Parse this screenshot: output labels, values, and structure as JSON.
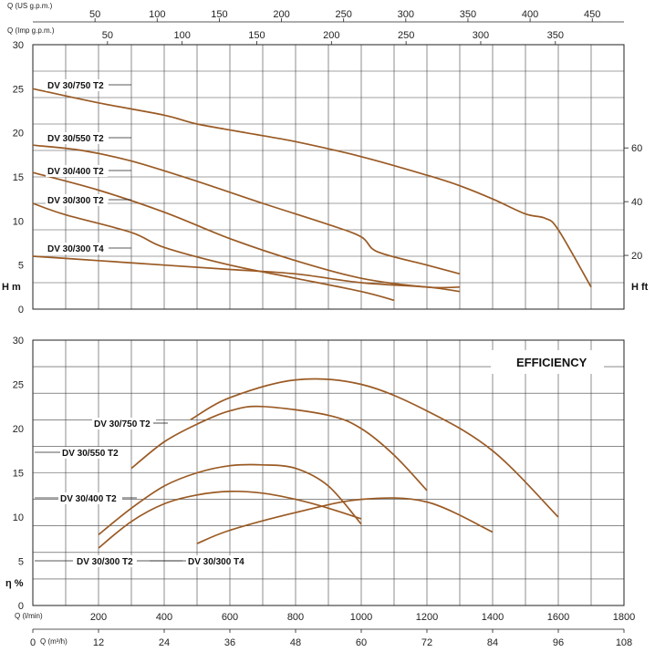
{
  "chart_data": [
    {
      "id": "head",
      "type": "line",
      "x_unit": "l/min",
      "xlim": [
        0,
        1800
      ],
      "ylim": [
        0,
        30
      ],
      "y_ticks": [
        0,
        5,
        10,
        15,
        20,
        25,
        30
      ],
      "ylabel": "H m",
      "right_axis": {
        "label": "H ft",
        "ticks": [
          20,
          40,
          60
        ]
      },
      "top_axes": [
        {
          "label": "Q (US g.p.m.)",
          "ticks": [
            50,
            100,
            150,
            200,
            250,
            300,
            350,
            400,
            450
          ]
        },
        {
          "label": "Q (Imp g.p.m.)",
          "ticks": [
            50,
            100,
            150,
            200,
            250,
            300,
            350
          ]
        }
      ],
      "grid": true,
      "series": [
        {
          "name": "DV 30/750 T2",
          "points": [
            [
              0,
              25
            ],
            [
              200,
              23.4
            ],
            [
              400,
              22
            ],
            [
              500,
              21
            ],
            [
              650,
              20
            ],
            [
              800,
              19
            ],
            [
              1000,
              17.3
            ],
            [
              1200,
              15.2
            ],
            [
              1300,
              14
            ],
            [
              1400,
              12.5
            ],
            [
              1500,
              10.8
            ],
            [
              1560,
              10.3
            ],
            [
              1600,
              9
            ],
            [
              1700,
              2.5
            ]
          ]
        },
        {
          "name": "DV 30/550 T2",
          "points": [
            [
              0,
              18.6
            ],
            [
              150,
              18
            ],
            [
              300,
              16.8
            ],
            [
              500,
              14.5
            ],
            [
              700,
              12
            ],
            [
              900,
              9.6
            ],
            [
              1000,
              8.2
            ],
            [
              1050,
              6.5
            ],
            [
              1200,
              5
            ],
            [
              1300,
              4
            ]
          ]
        },
        {
          "name": "DV 30/400 T2",
          "points": [
            [
              0,
              15.5
            ],
            [
              200,
              13.5
            ],
            [
              400,
              11
            ],
            [
              600,
              8
            ],
            [
              800,
              5.5
            ],
            [
              1000,
              3.5
            ],
            [
              1200,
              2.5
            ],
            [
              1300,
              2.5
            ]
          ]
        },
        {
          "name": "DV 30/300 T2",
          "points": [
            [
              0,
              12
            ],
            [
              100,
              10.7
            ],
            [
              300,
              8.7
            ],
            [
              400,
              7
            ],
            [
              600,
              5
            ],
            [
              800,
              3.5
            ],
            [
              1000,
              2
            ],
            [
              1100,
              1
            ]
          ]
        },
        {
          "name": "DV 30/300 T4",
          "points": [
            [
              0,
              6
            ],
            [
              200,
              5.5
            ],
            [
              400,
              5
            ],
            [
              600,
              4.5
            ],
            [
              800,
              4
            ],
            [
              1000,
              3
            ],
            [
              1200,
              2.5
            ],
            [
              1300,
              2
            ]
          ]
        }
      ]
    },
    {
      "id": "efficiency",
      "type": "line",
      "title": "EFFICIENCY",
      "xlabel_lpm": "Q (l/min)",
      "xlabel_m3h": "Q (m³/h)",
      "ylabel": "η %",
      "xlim": [
        0,
        1800
      ],
      "ylim": [
        0,
        30
      ],
      "y_ticks": [
        0,
        5,
        10,
        15,
        20,
        25,
        30
      ],
      "x_ticks_lpm": [
        200,
        400,
        600,
        800,
        1000,
        1200,
        1400,
        1600,
        1800
      ],
      "x_ticks_m3h": [
        0,
        12,
        24,
        36,
        48,
        60,
        72,
        84,
        96,
        108
      ],
      "grid": true,
      "series": [
        {
          "name": "DV 30/750 T2",
          "points": [
            [
              480,
              21
            ],
            [
              600,
              23.5
            ],
            [
              800,
              25.5
            ],
            [
              1000,
              25
            ],
            [
              1200,
              22
            ],
            [
              1400,
              17.5
            ],
            [
              1600,
              10
            ]
          ]
        },
        {
          "name": "DV 30/550 T2",
          "points": [
            [
              300,
              15.5
            ],
            [
              400,
              18.5
            ],
            [
              500,
              20.5
            ],
            [
              600,
              22
            ],
            [
              700,
              22.5
            ],
            [
              900,
              21.5
            ],
            [
              1000,
              20
            ],
            [
              1100,
              17
            ],
            [
              1200,
              13
            ]
          ]
        },
        {
          "name": "DV 30/400 T2",
          "points": [
            [
              200,
              8
            ],
            [
              300,
              11
            ],
            [
              400,
              13.5
            ],
            [
              500,
              15
            ],
            [
              600,
              15.8
            ],
            [
              700,
              15.9
            ],
            [
              800,
              15.5
            ],
            [
              900,
              13.5
            ],
            [
              1000,
              9.2
            ]
          ]
        },
        {
          "name": "DV 30/300 T2",
          "points": [
            [
              200,
              6.5
            ],
            [
              300,
              9.5
            ],
            [
              400,
              11.5
            ],
            [
              500,
              12.5
            ],
            [
              600,
              12.9
            ],
            [
              700,
              12.7
            ],
            [
              800,
              12
            ],
            [
              900,
              11
            ],
            [
              1000,
              9.8
            ]
          ]
        },
        {
          "name": "DV 30/300 T4",
          "points": [
            [
              500,
              7
            ],
            [
              600,
              8.5
            ],
            [
              800,
              10.5
            ],
            [
              1000,
              12
            ],
            [
              1200,
              11.7
            ],
            [
              1400,
              8.3
            ]
          ]
        }
      ]
    }
  ]
}
